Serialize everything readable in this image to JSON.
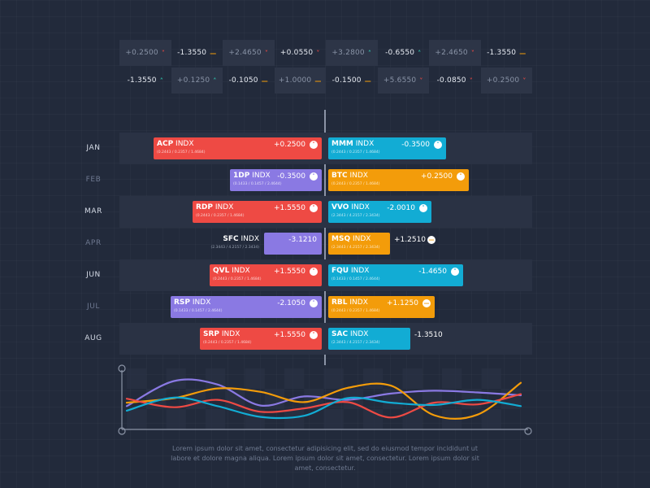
{
  "ticker": [
    [
      {
        "value": "+0.2500",
        "trend": "down",
        "shade": true,
        "muted": true
      },
      {
        "value": "-1.3550",
        "trend": "flat",
        "shade": false,
        "muted": false
      },
      {
        "value": "+2.4650",
        "trend": "down",
        "shade": true,
        "muted": true
      },
      {
        "value": "+0.0550",
        "trend": "down",
        "shade": false,
        "muted": false
      },
      {
        "value": "+3.2800",
        "trend": "up",
        "shade": true,
        "muted": true
      },
      {
        "value": "-0.6550",
        "trend": "up",
        "shade": false,
        "muted": false
      },
      {
        "value": "+2.4650",
        "trend": "down",
        "shade": true,
        "muted": true
      },
      {
        "value": "-1.3550",
        "trend": "flat",
        "shade": false,
        "muted": false
      }
    ],
    [
      {
        "value": "-1.3550",
        "trend": "up",
        "shade": false,
        "muted": false
      },
      {
        "value": "+0.1250",
        "trend": "up",
        "shade": true,
        "muted": true
      },
      {
        "value": "-0.1050",
        "trend": "flat",
        "shade": false,
        "muted": false
      },
      {
        "value": "+1.0000",
        "trend": "flat",
        "shade": true,
        "muted": true
      },
      {
        "value": "-0.1500",
        "trend": "flat",
        "shade": false,
        "muted": false
      },
      {
        "value": "+5.6550",
        "trend": "down",
        "shade": true,
        "muted": true
      },
      {
        "value": "-0.0850",
        "trend": "down",
        "shade": false,
        "muted": false
      },
      {
        "value": "+0.2500",
        "trend": "down",
        "shade": true,
        "muted": true
      }
    ]
  ],
  "chart_data": [
    {
      "type": "bar",
      "title": "",
      "categories": [
        "JAN",
        "FEB",
        "MAR",
        "APR",
        "JUN",
        "JUL",
        "AUG"
      ],
      "series": [
        {
          "side": "left",
          "items": [
            {
              "ticker": "ACP",
              "suffix": "INDX",
              "sub": "0.2443 / 0.2357 / 1.4684",
              "value": "+0.2500",
              "magnitude": 0.9,
              "color": "#ee4a44",
              "dir": "up"
            },
            {
              "ticker": "1DP",
              "suffix": "INDX",
              "sub": "0.1433 / 0.1457 / 2.4644",
              "value": "-0.3500",
              "magnitude": 0.49,
              "color": "#8a79e3",
              "dir": "up"
            },
            {
              "ticker": "RDP",
              "suffix": "INDX",
              "sub": "0.2443 / 0.2357 / 1.4684",
              "value": "+1.5550",
              "magnitude": 0.69,
              "color": "#ee4a44",
              "dir": "down"
            },
            {
              "ticker": "SFC",
              "suffix": "INDX",
              "sub": "2.3443 / 4.2157 / 2.3434",
              "value": "-3.1210",
              "magnitude": 0.31,
              "color": "#8a79e3",
              "dir": null
            },
            {
              "ticker": "QVL",
              "suffix": "INDX",
              "sub": "0.2443 / 0.2357 / 1.4684",
              "value": "+1.5550",
              "magnitude": 0.6,
              "color": "#ee4a44",
              "dir": "down"
            },
            {
              "ticker": "RSP",
              "suffix": "INDX",
              "sub": "0.1433 / 0.1457 / 2.4644",
              "value": "-2.1050",
              "magnitude": 0.81,
              "color": "#8a79e3",
              "dir": "down"
            },
            {
              "ticker": "SRP",
              "suffix": "INDX",
              "sub": "0.2443 / 0.2357 / 1.4684",
              "value": "+1.5550",
              "magnitude": 0.65,
              "color": "#ee4a44",
              "dir": "down"
            }
          ]
        },
        {
          "side": "right",
          "items": [
            {
              "ticker": "MMM",
              "suffix": "INDX",
              "sub": "0.2443 / 0.2357 / 1.4684",
              "value": "-0.3500",
              "magnitude": 0.63,
              "color": "#12acd4",
              "dir": "up"
            },
            {
              "ticker": "BTC",
              "suffix": "INDX",
              "sub": "0.2443 / 0.2357 / 1.4684",
              "value": "+0.2500",
              "magnitude": 0.75,
              "color": "#f39c0a",
              "dir": "up"
            },
            {
              "ticker": "VVO",
              "suffix": "INDX",
              "sub": "2.3443 / 4.2157 / 2.3434",
              "value": "-2.0010",
              "magnitude": 0.55,
              "color": "#12acd4",
              "dir": "down"
            },
            {
              "ticker": "MSQ",
              "suffix": "INDX",
              "sub": "2.3443 / 4.2157 / 2.3434",
              "value": "+1.2510",
              "magnitude": 0.33,
              "color": "#f39c0a",
              "dir": "flat"
            },
            {
              "ticker": "FQU",
              "suffix": "INDX",
              "sub": "0.1433 / 0.1457 / 2.4644",
              "value": "-1.4650",
              "magnitude": 0.72,
              "color": "#12acd4",
              "dir": "down"
            },
            {
              "ticker": "RBL",
              "suffix": "INDX",
              "sub": "0.2443 / 0.2357 / 1.4684",
              "value": "+1.1250",
              "magnitude": 0.57,
              "color": "#f39c0a",
              "dir": "flat"
            },
            {
              "ticker": "SAC",
              "suffix": "INDX",
              "sub": "2.3443 / 4.2157 / 2.3434",
              "value": "-1.3510",
              "magnitude": 0.44,
              "color": "#12acd4",
              "dir": null
            }
          ]
        }
      ],
      "month_style": [
        "bright",
        "dim",
        "bright",
        "dim",
        "bright",
        "dim",
        "bright"
      ]
    },
    {
      "type": "line",
      "title": "",
      "xlabel": "",
      "ylabel": "",
      "xlim": [
        0,
        10
      ],
      "ylim": [
        0,
        10
      ],
      "grid": true,
      "series": [
        {
          "name": "purple",
          "color": "#8a79e3",
          "x": [
            0,
            1.2,
            2.3,
            3.4,
            4.5,
            5.6,
            6.7,
            7.8,
            8.9,
            10
          ],
          "y": [
            4.1,
            8.5,
            7.9,
            4.2,
            5.8,
            5.2,
            6.3,
            6.8,
            6.5,
            6.0
          ]
        },
        {
          "name": "orange",
          "color": "#f39c0a",
          "x": [
            0,
            1.2,
            2.3,
            3.4,
            4.5,
            5.6,
            6.7,
            7.8,
            8.9,
            10
          ],
          "y": [
            4.7,
            5.5,
            7.2,
            6.6,
            4.8,
            7.3,
            7.7,
            2.5,
            2.6,
            8.2
          ]
        },
        {
          "name": "red",
          "color": "#ee4a44",
          "x": [
            0,
            1.2,
            2.3,
            3.4,
            4.5,
            5.6,
            6.7,
            7.8,
            8.9,
            10
          ],
          "y": [
            5.4,
            3.9,
            5.2,
            3.1,
            3.7,
            4.8,
            2.1,
            4.7,
            4.4,
            6.2
          ]
        },
        {
          "name": "cyan",
          "color": "#12acd4",
          "x": [
            0,
            1.2,
            2.3,
            3.4,
            4.5,
            5.6,
            6.7,
            7.8,
            8.9,
            10
          ],
          "y": [
            3.3,
            5.6,
            4.1,
            2.2,
            2.4,
            5.5,
            4.7,
            4.3,
            5.2,
            4.1
          ]
        }
      ]
    }
  ],
  "caption": "Lorem ipsum dolor sit amet, consectetur adipisicing elit, sed do eiusmod tempor incididunt ut labore et dolore magna aliqua. Lorem ipsum dolor sit amet, consectetur. Lorem ipsum dolor sit amet, consectetur."
}
